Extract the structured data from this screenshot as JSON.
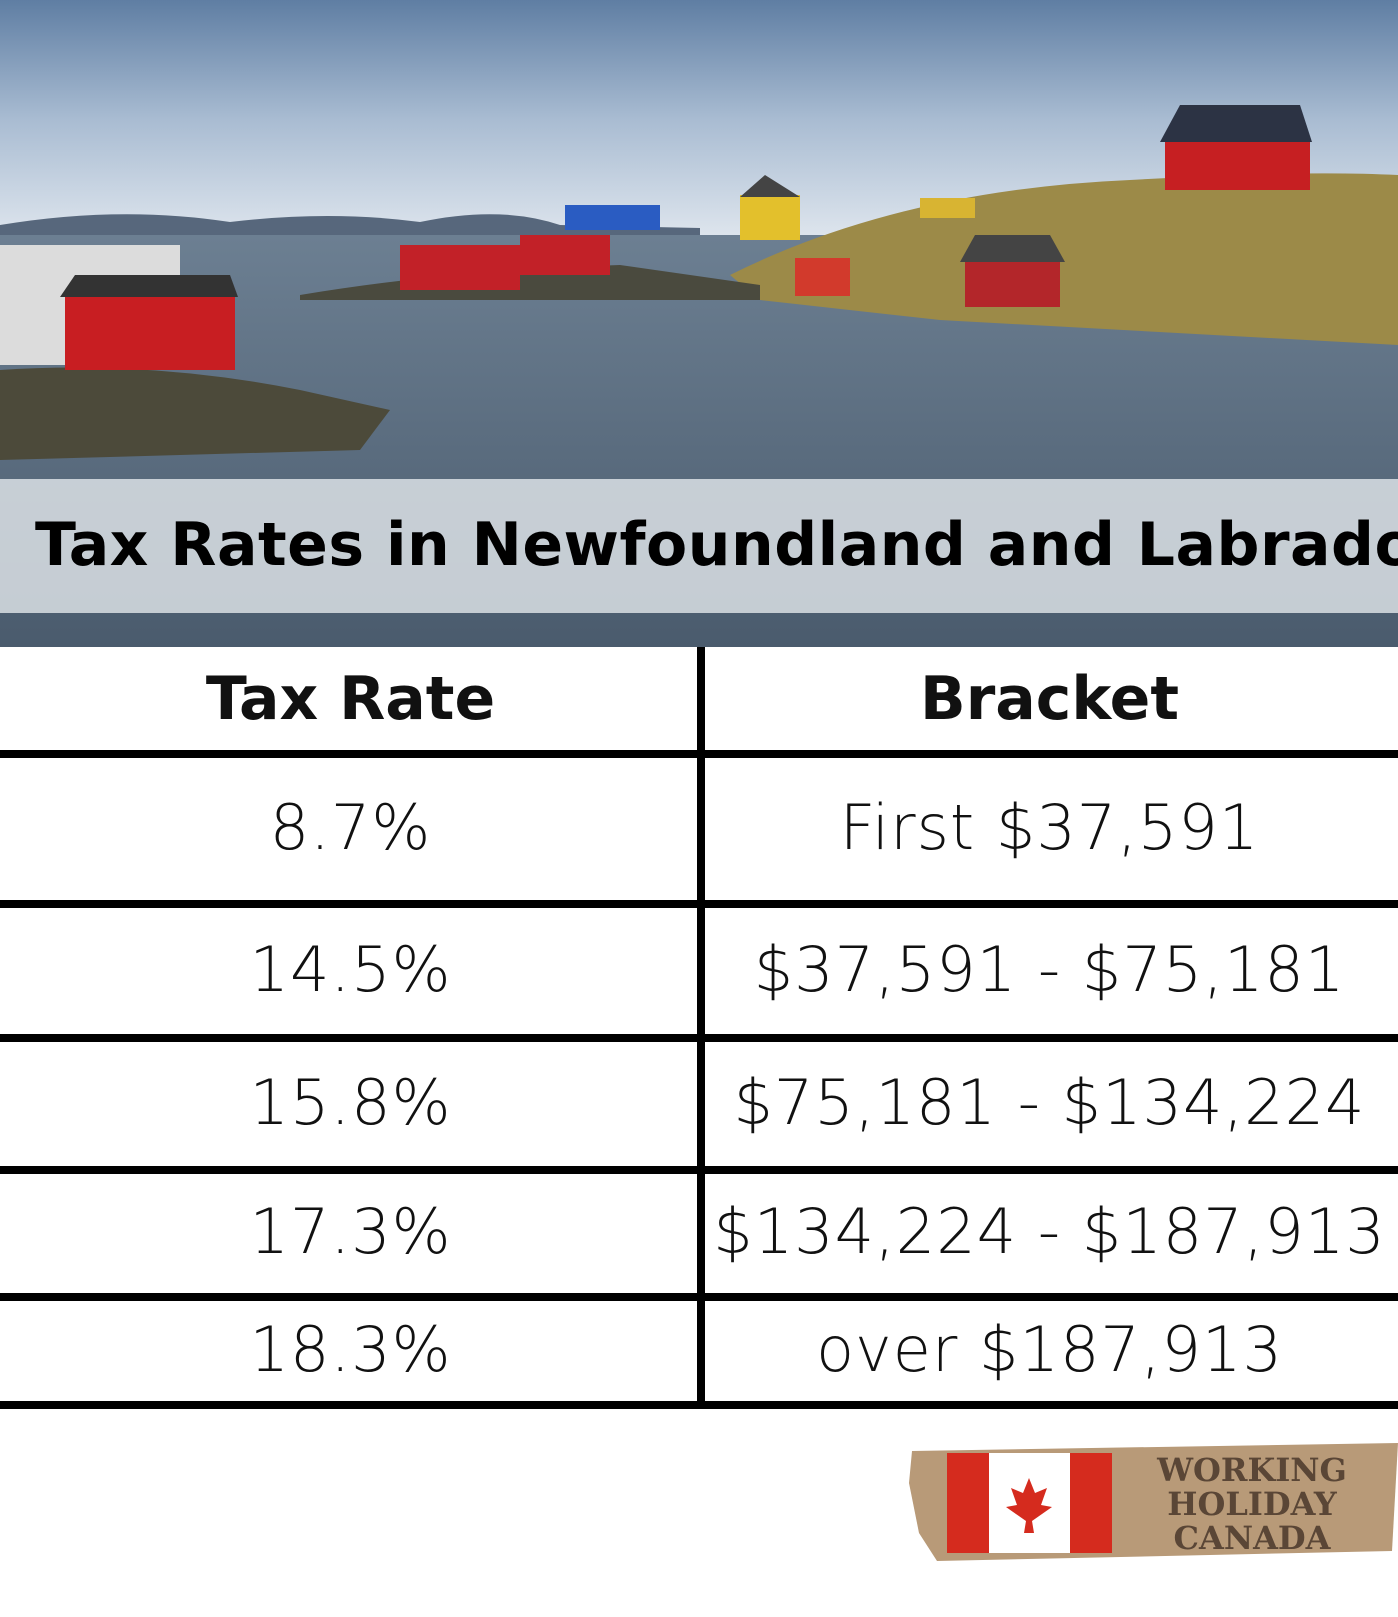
{
  "header": {
    "title": "Tax Rates in Newfoundland and Labrador"
  },
  "table": {
    "columns": [
      "Tax Rate",
      "Bracket"
    ],
    "rows": [
      [
        "8.7%",
        "First $37,591"
      ],
      [
        "14.5%",
        "$37,591 - $75,181"
      ],
      [
        "15.8%",
        "$75,181 - $134,224"
      ],
      [
        "17.3%",
        "$134,224 - $187,913"
      ],
      [
        "18.3%",
        "over $187,913"
      ]
    ]
  },
  "logo": {
    "lines": [
      "WORKING",
      "HOLIDAY",
      "CANADA"
    ]
  }
}
